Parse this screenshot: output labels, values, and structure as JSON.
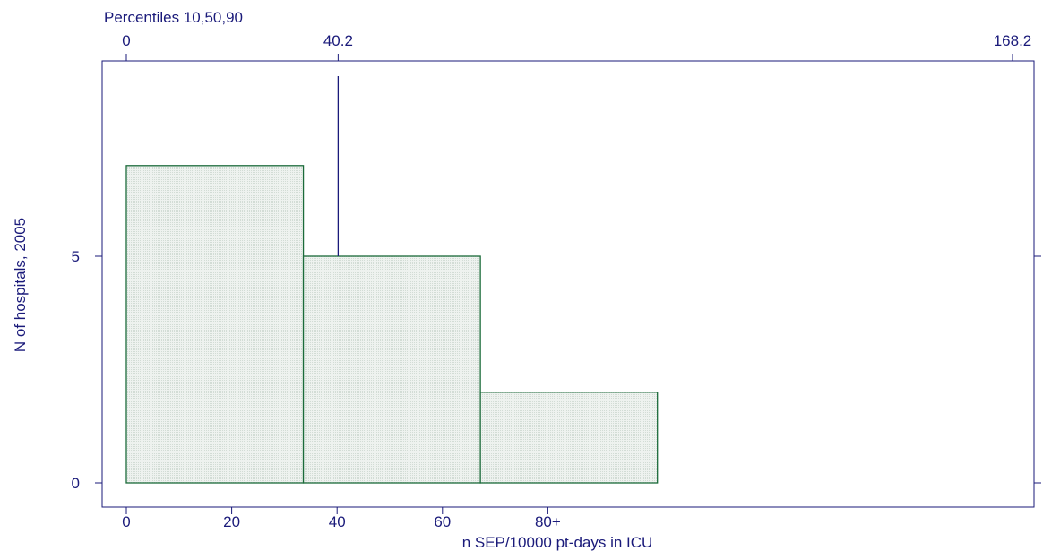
{
  "chart_data": {
    "type": "bar",
    "histogram": true,
    "top_axis_title": "Percentiles 10,50,90",
    "percentiles": [
      {
        "value": 0,
        "label": "0"
      },
      {
        "value": 40.2,
        "label": "40.2"
      },
      {
        "value": 168.2,
        "label": "168.2"
      }
    ],
    "median_marker": 40.2,
    "bins": [
      {
        "start": 0,
        "end": 33.6,
        "count": 7
      },
      {
        "start": 33.6,
        "end": 67.2,
        "count": 5
      },
      {
        "start": 67.2,
        "end": 100.8,
        "count": 2
      }
    ],
    "xlabel": "n SEP/10000 pt-days in ICU",
    "ylabel": "N of hospitals, 2005",
    "x_ticks": [
      {
        "value": 0,
        "label": "0"
      },
      {
        "value": 20,
        "label": "20"
      },
      {
        "value": 40,
        "label": "40"
      },
      {
        "value": 60,
        "label": "60"
      },
      {
        "value": 80,
        "label": "80+"
      }
    ],
    "y_ticks": [
      {
        "value": 0,
        "label": "0"
      },
      {
        "value": 5,
        "label": "5"
      }
    ],
    "xlim": [
      0,
      168.2
    ],
    "ylim": [
      0,
      9
    ],
    "grid": false,
    "colors": {
      "axis": "#1a1a7a",
      "bar_stroke": "#1b6b3a",
      "bar_fill": "#e4e9e6"
    }
  }
}
